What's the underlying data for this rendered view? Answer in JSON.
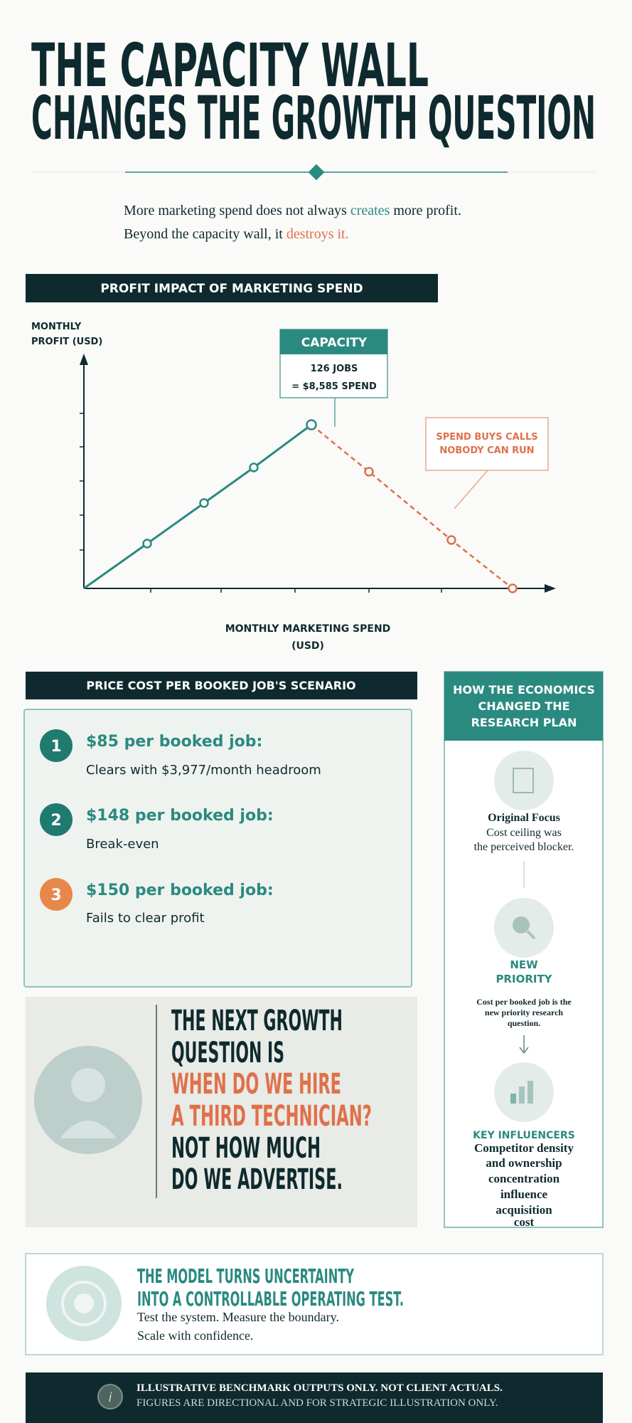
{
  "header": {
    "title_line1": "THE CAPACITY WALL",
    "title_line2": "CHANGES THE GROWTH QUESTION"
  },
  "intro": {
    "line1": [
      "More marketing spend does not always ",
      "creates",
      " more profit."
    ],
    "line2": [
      "Beyond the capacity wall, it ",
      "destroys it."
    ]
  },
  "profit_chart": {
    "title": "PROFIT IMPACT OF MARKETING SPEND",
    "y_label": [
      "MONTHLY",
      "PROFIT (USD)"
    ],
    "x_label": [
      "MONTHLY MARKETING SPEND",
      "(USD)"
    ],
    "capacity": {
      "title": "CAPACITY",
      "line1": "126 JOBS",
      "line2": "= $8,585 SPEND"
    },
    "callout": [
      "SPEND BUYS CALLS",
      "NOBODY CAN RUN"
    ]
  },
  "scenarios": {
    "title": "PRICE COST PER BOOKED JOB'S SCENARIO",
    "items": [
      {
        "number": "1",
        "heading": "$85 per booked job:",
        "detail": "Clears with $3,977/month headroom"
      },
      {
        "number": "2",
        "heading": "$148 per booked job:",
        "detail": "Break-even"
      },
      {
        "number": "3",
        "heading": "$150 per booked job:",
        "detail": "Fails to clear profit"
      }
    ]
  },
  "research_plan": {
    "title": [
      "HOW THE ECONOMICS",
      "CHANGED THE",
      "RESEARCH PLAN"
    ],
    "steps": [
      {
        "heading": [
          "Original Focus"
        ],
        "text": [
          "Cost ceiling was",
          "the perceived blocker."
        ]
      },
      {
        "heading": [
          "NEW",
          "PRIORITY"
        ],
        "text": [
          "Cost per booked job is the",
          "new priority research",
          "question."
        ]
      },
      {
        "heading": [
          "KEY INFLUENCERS"
        ],
        "text": [
          "Competitor density",
          "and ownership",
          "concentration",
          "influence",
          "acquisition",
          "cost"
        ]
      }
    ]
  },
  "quote": {
    "lines": [
      "THE NEXT GROWTH",
      "QUESTION IS",
      "WHEN DO WE HIRE",
      "A THIRD TECHNICIAN?",
      "NOT HOW MUCH",
      "DO WE ADVERTISE."
    ]
  },
  "model": {
    "heading": [
      "THE MODEL TURNS UNCERTAINTY",
      "INTO A CONTROLLABLE OPERATING TEST."
    ],
    "text": [
      "Test the system. Measure the boundary.",
      "Scale with confidence."
    ]
  },
  "footer": {
    "lines": [
      "ILLUSTRATIVE BENCHMARK OUTPUTS ONLY. NOT CLIENT ACTUALS.",
      "FIGURES ARE DIRECTIONAL AND FOR STRATEGIC ILLUSTRATION ONLY."
    ]
  }
}
